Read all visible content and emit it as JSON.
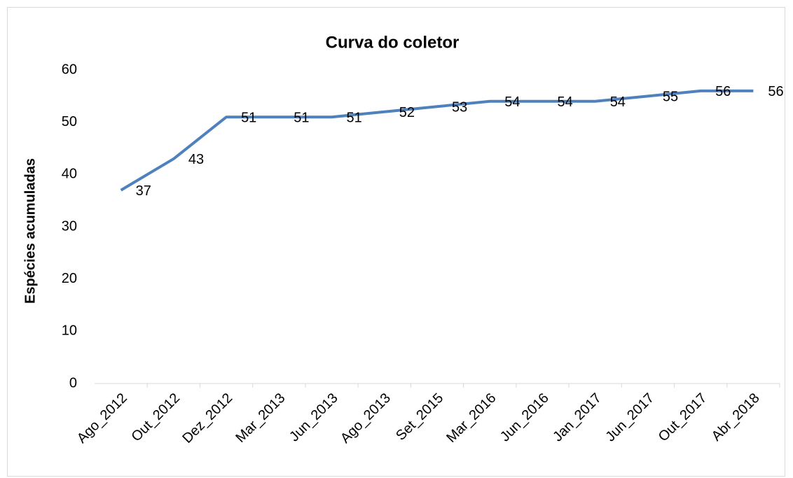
{
  "chart_data": {
    "type": "line",
    "title": "Curva do coletor",
    "y_label": "Espécies acumuladas",
    "categories": [
      "Ago_2012",
      "Out_2012",
      "Dez_2012",
      "Mar_2013",
      "Jun_2013",
      "Ago_2013",
      "Set_2015",
      "Mar_2016",
      "Jun_2016",
      "Jan_2017",
      "Jun_2017",
      "Out_2017",
      "Abr_2018"
    ],
    "values": [
      37,
      43,
      51,
      51,
      51,
      52,
      53,
      54,
      54,
      54,
      55,
      56,
      56
    ],
    "color": "#4f81bd",
    "ylim": [
      0,
      60
    ],
    "yticks": [
      0,
      10,
      20,
      30,
      40,
      50,
      60
    ],
    "grid": false
  }
}
